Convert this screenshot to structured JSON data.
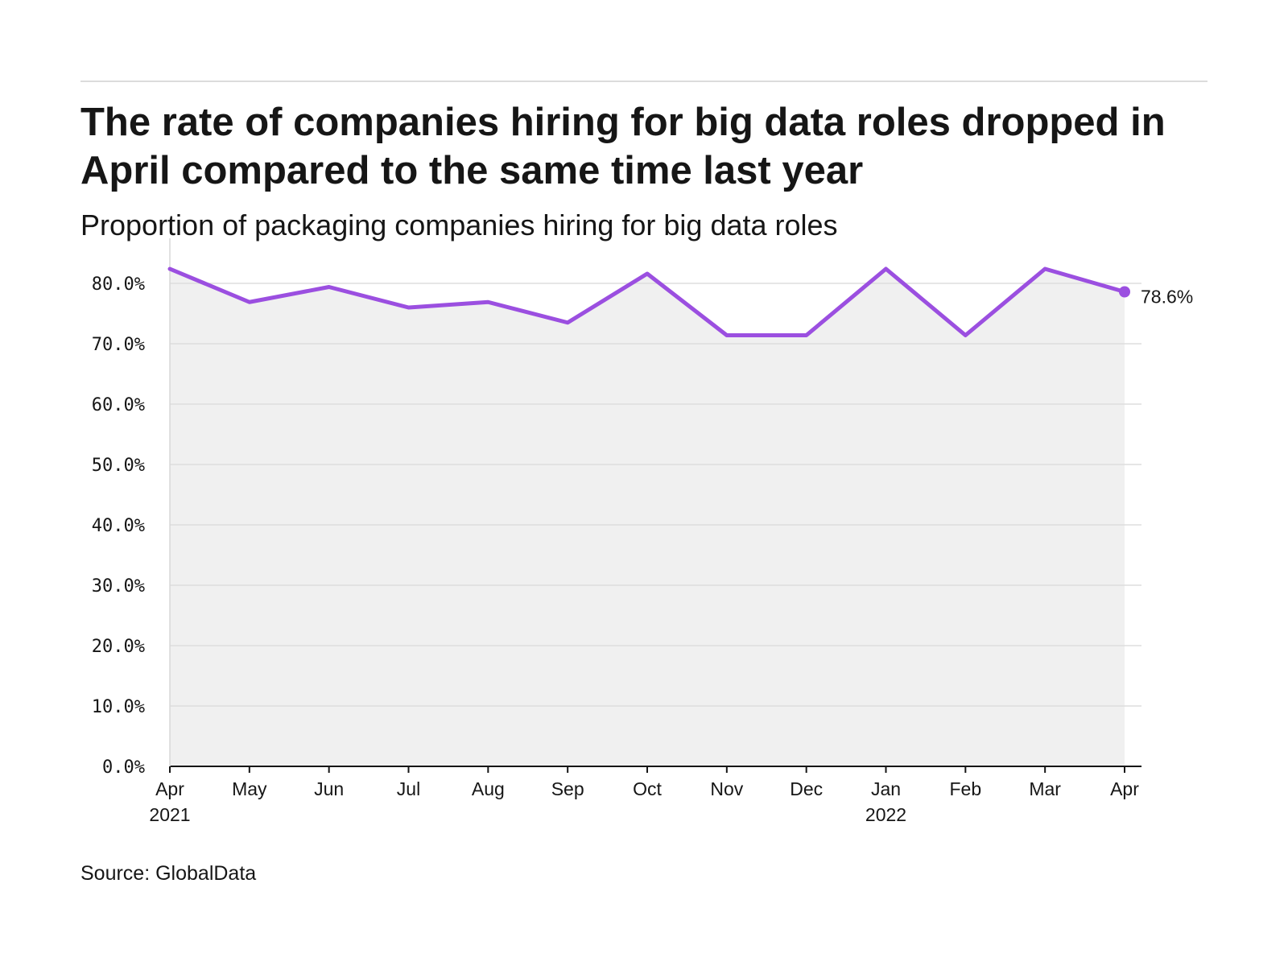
{
  "title": "The rate of companies hiring for big data roles dropped in April compared to the same time last year",
  "subtitle": "Proportion of packaging companies hiring for big data roles",
  "source": "Source: GlobalData",
  "colors": {
    "line": "#9b4fe0",
    "area": "#f0f0f0",
    "grid": "#dddddd",
    "axis": "#161616"
  },
  "chart_data": {
    "type": "area",
    "title": "The rate of companies hiring for big data roles dropped in April compared to the same time last year",
    "subtitle": "Proportion of packaging companies hiring for big data roles",
    "xlabel": "",
    "ylabel": "",
    "categories": [
      "Apr 2021",
      "May 2021",
      "Jun 2021",
      "Jul 2021",
      "Aug 2021",
      "Sep 2021",
      "Oct 2021",
      "Nov 2021",
      "Dec 2021",
      "Jan 2022",
      "Feb 2022",
      "Mar 2022",
      "Apr 2022"
    ],
    "x_tick_labels": [
      {
        "month": "Apr",
        "year": "2021"
      },
      {
        "month": "May",
        "year": ""
      },
      {
        "month": "Jun",
        "year": ""
      },
      {
        "month": "Jul",
        "year": ""
      },
      {
        "month": "Aug",
        "year": ""
      },
      {
        "month": "Sep",
        "year": ""
      },
      {
        "month": "Oct",
        "year": ""
      },
      {
        "month": "Nov",
        "year": ""
      },
      {
        "month": "Dec",
        "year": ""
      },
      {
        "month": "Jan",
        "year": "2022"
      },
      {
        "month": "Feb",
        "year": ""
      },
      {
        "month": "Mar",
        "year": ""
      },
      {
        "month": "Apr",
        "year": ""
      }
    ],
    "series": [
      {
        "values": [
          82.4,
          76.9,
          79.4,
          76.0,
          76.9,
          73.5,
          81.6,
          71.4,
          71.4,
          82.4,
          71.4,
          82.4,
          78.6
        ]
      }
    ],
    "ylim": [
      0,
      80
    ],
    "y_ticks": [
      0,
      10,
      20,
      30,
      40,
      50,
      60,
      70,
      80
    ],
    "y_tick_labels": [
      "0.0%",
      "10.0%",
      "20.0%",
      "30.0%",
      "40.0%",
      "50.0%",
      "60.0%",
      "70.0%",
      "80.0%"
    ],
    "end_label": "78.6%",
    "grid": true,
    "legend": "none"
  }
}
